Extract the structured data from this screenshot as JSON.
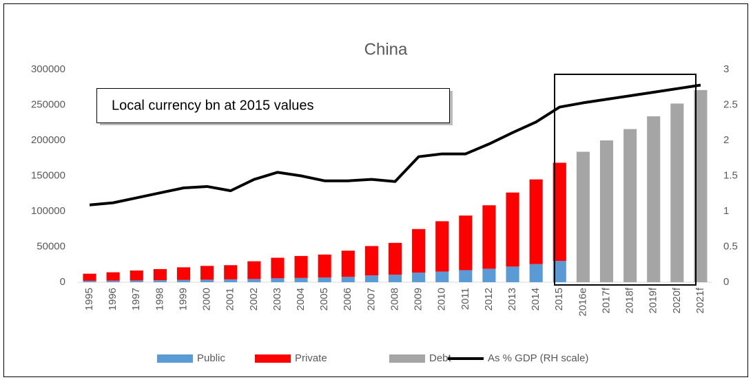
{
  "chart_data": {
    "type": "bar",
    "title": "China",
    "annotation": "Local currency bn at 2015 values",
    "categories": [
      "1995",
      "1996",
      "1997",
      "1998",
      "1999",
      "2000",
      "2001",
      "2002",
      "2003",
      "2004",
      "2005",
      "2006",
      "2007",
      "2008",
      "2009",
      "2010",
      "2011",
      "2012",
      "2013",
      "2014",
      "2015",
      "2016e",
      "2017f",
      "2018f",
      "2019f",
      "2020f",
      "2021f"
    ],
    "series": [
      {
        "name": "Public",
        "color": "#5b9bd5",
        "stacked": true,
        "values": [
          2000,
          2200,
          2500,
          2800,
          3200,
          3500,
          4000,
          4500,
          5500,
          6000,
          6500,
          7500,
          9500,
          10500,
          13500,
          15000,
          17000,
          19000,
          22000,
          25500,
          30000,
          null,
          null,
          null,
          null,
          null,
          null
        ]
      },
      {
        "name": "Private",
        "color": "#ff0000",
        "stacked": true,
        "values": [
          10000,
          11800,
          14000,
          15700,
          17800,
          19500,
          20000,
          25000,
          29000,
          31000,
          32500,
          37000,
          41500,
          45000,
          61500,
          71000,
          77000,
          89500,
          104500,
          119500,
          138500,
          null,
          null,
          null,
          null,
          null,
          null
        ]
      },
      {
        "name": "Debt",
        "color": "#a5a5a5",
        "stacked": true,
        "values": [
          null,
          null,
          null,
          null,
          null,
          null,
          null,
          null,
          null,
          null,
          null,
          null,
          null,
          null,
          null,
          null,
          null,
          null,
          null,
          null,
          null,
          184000,
          200000,
          216000,
          234000,
          252000,
          271000
        ]
      },
      {
        "name": "As % GDP (RH scale)",
        "color": "#000000",
        "type": "line",
        "axis": "y2",
        "values": [
          1.09,
          1.12,
          1.19,
          1.26,
          1.33,
          1.35,
          1.29,
          1.45,
          1.55,
          1.5,
          1.43,
          1.43,
          1.45,
          1.42,
          1.77,
          1.81,
          1.81,
          1.95,
          2.11,
          2.26,
          2.47,
          2.53,
          2.58,
          2.63,
          2.68,
          2.73,
          2.78
        ]
      }
    ],
    "ylim": [
      0,
      300000
    ],
    "yticks": [
      0,
      50000,
      100000,
      150000,
      200000,
      250000,
      300000
    ],
    "y2lim": [
      0,
      3
    ],
    "y2ticks": [
      0,
      0.5,
      1,
      1.5,
      2,
      2.5,
      3
    ],
    "legend": "bottom"
  }
}
